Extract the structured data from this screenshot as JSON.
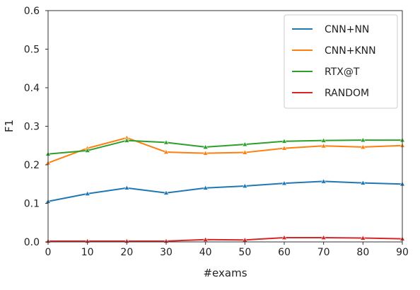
{
  "chart_data": {
    "type": "line",
    "title": "",
    "xlabel": "#exams",
    "ylabel": "F1",
    "x": [
      0,
      10,
      20,
      30,
      40,
      50,
      60,
      70,
      80,
      90
    ],
    "xlim": [
      0,
      90
    ],
    "ylim": [
      0,
      0.6
    ],
    "xticks": [
      "0",
      "10",
      "20",
      "30",
      "40",
      "50",
      "60",
      "70",
      "80",
      "90"
    ],
    "yticks": [
      "0.0",
      "0.1",
      "0.2",
      "0.3",
      "0.4",
      "0.5",
      "0.6"
    ],
    "grid": false,
    "legend_position": "top-right",
    "series": [
      {
        "name": "CNN+NN",
        "color": "#1f77b4",
        "values": [
          0.105,
          0.125,
          0.14,
          0.127,
          0.14,
          0.145,
          0.152,
          0.157,
          0.153,
          0.15
        ]
      },
      {
        "name": "CNN+KNN",
        "color": "#ff7f0e",
        "values": [
          0.205,
          0.243,
          0.27,
          0.233,
          0.23,
          0.232,
          0.243,
          0.249,
          0.246,
          0.25
        ]
      },
      {
        "name": "RTX@T",
        "color": "#2ca02c",
        "values": [
          0.228,
          0.237,
          0.263,
          0.258,
          0.246,
          0.253,
          0.261,
          0.263,
          0.264,
          0.264
        ]
      },
      {
        "name": "RANDOM",
        "color": "#d62728",
        "values": [
          0.002,
          0.002,
          0.002,
          0.002,
          0.006,
          0.005,
          0.011,
          0.011,
          0.01,
          0.008
        ]
      }
    ]
  }
}
